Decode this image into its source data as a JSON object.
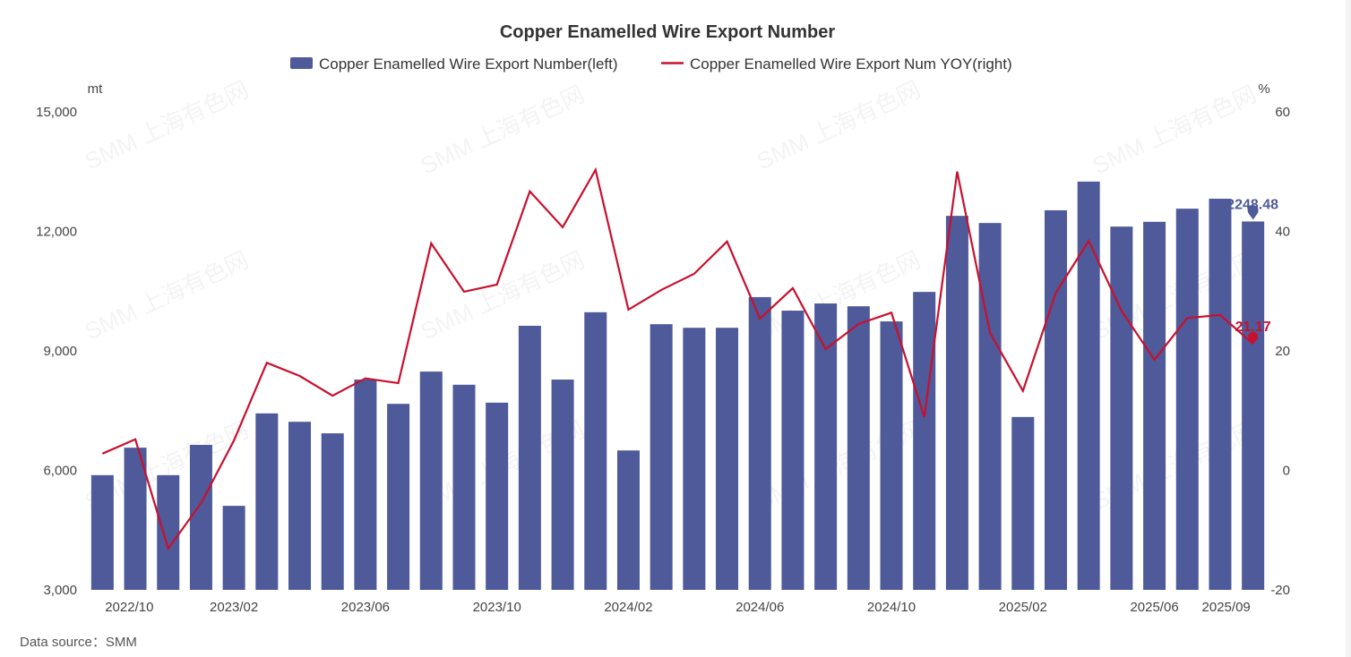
{
  "chart_data": {
    "type": "bar+line",
    "title": "Copper Enamelled Wire Export Number",
    "categories": [
      "2022/10",
      "2022/11",
      "2022/12",
      "2023/01",
      "2023/02",
      "2023/03",
      "2023/04",
      "2023/05",
      "2023/06",
      "2023/07",
      "2023/08",
      "2023/09",
      "2023/10",
      "2023/11",
      "2023/12",
      "2024/01",
      "2024/02",
      "2024/03",
      "2024/04",
      "2024/05",
      "2024/06",
      "2024/07",
      "2024/08",
      "2024/09",
      "2024/10",
      "2024/11",
      "2024/12",
      "2025/01",
      "2025/02",
      "2025/03",
      "2025/04",
      "2025/05",
      "2025/06",
      "2025/07",
      "2025/08",
      "2025/09"
    ],
    "shown_tick_labels": [
      "2022/10",
      "2023/02",
      "2023/06",
      "2023/10",
      "2024/02",
      "2024/06",
      "2024/10",
      "2025/02",
      "2025/06",
      "2025/09"
    ],
    "series": [
      {
        "name": "Copper Enamelled Wire Export Number(left)",
        "type": "bar",
        "axis": "left",
        "color": "#4e5a99",
        "values": [
          5880,
          6570,
          5880,
          6640,
          5110,
          7430,
          7220,
          6930,
          8280,
          7670,
          8480,
          8150,
          7700,
          9630,
          8280,
          9970,
          6500,
          9670,
          9580,
          9580,
          10350,
          10010,
          10190,
          10120,
          9740,
          10480,
          12390,
          12210,
          7340,
          12530,
          13250,
          12120,
          12240,
          12570,
          12820,
          12248.48
        ],
        "last_label": "12248.48"
      },
      {
        "name": "Copper Enamelled Wire Export Num YOY(right)",
        "type": "line",
        "axis": "right",
        "color": "#c8102e",
        "values": [
          2.8,
          5.2,
          -13.1,
          -5.5,
          5.0,
          18.0,
          15.8,
          12.5,
          15.4,
          14.6,
          38.0,
          29.9,
          31.1,
          46.7,
          40.7,
          50.3,
          26.9,
          30.2,
          32.9,
          38.3,
          25.4,
          30.5,
          20.3,
          24.5,
          26.4,
          8.9,
          50.0,
          23.0,
          13.3,
          29.7,
          38.4,
          26.7,
          18.5,
          25.5,
          26.0,
          21.17
        ],
        "last_label": "21.17"
      }
    ],
    "left_axis": {
      "unit": "mt",
      "ylim": [
        3000,
        15000
      ],
      "ticks": [
        "3,000",
        "6,000",
        "9,000",
        "12,000",
        "15,000"
      ],
      "tick_values": [
        3000,
        6000,
        9000,
        12000,
        15000
      ]
    },
    "right_axis": {
      "unit": "%",
      "ylim": [
        -20,
        60
      ],
      "ticks": [
        "-20",
        "0",
        "20",
        "40",
        "60"
      ],
      "tick_values": [
        -20,
        0,
        20,
        40,
        60
      ]
    },
    "legend_position": "top-center",
    "grid": false,
    "source": "Data source：SMM",
    "watermark": "SMM 上海有色网"
  }
}
